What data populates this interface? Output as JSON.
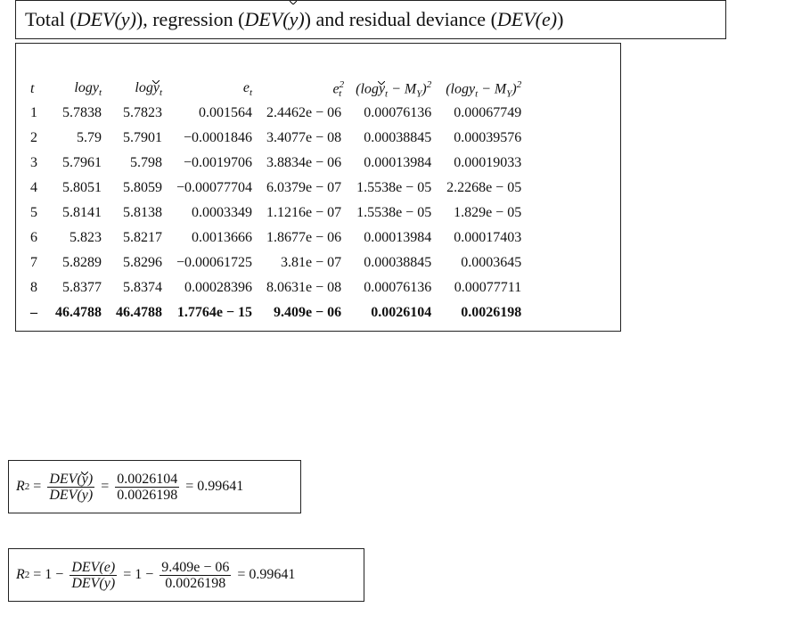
{
  "title": {
    "prefix": "Total (",
    "dev_y": "DEV(y)",
    "mid1": "), regression (",
    "dev_yhat_a": "DEV(",
    "dev_yhat_b": "y",
    "dev_yhat_c": ")",
    "mid2": ") and residual deviance (",
    "dev_e": "DEV(e)",
    "suffix": ")"
  },
  "table": {
    "headers": {
      "t": "t",
      "logy": "logy",
      "logy_sub": "t",
      "logyhat_a": "log",
      "logyhat_b": "y",
      "logyhat_sub": "t",
      "e": "e",
      "e_sub": "t",
      "e2": "e",
      "e2_sup": "2",
      "e2_sub": "t",
      "reg_a": "(log",
      "reg_b": "y",
      "reg_c": "t",
      "reg_d": " − M",
      "reg_e": "Y",
      "reg_f": ")",
      "reg_sup": "2",
      "tot_a": "(logy",
      "tot_b": "t",
      "tot_c": " − M",
      "tot_d": "Y",
      "tot_e": ")",
      "tot_sup": "2"
    },
    "rows": [
      {
        "t": "1",
        "logy": "5.7838",
        "logyhat": "5.7823",
        "e": "0.001564",
        "e2": "2.4462e − 06",
        "reg": "0.00076136",
        "tot": "0.00067749"
      },
      {
        "t": "2",
        "logy": "5.79",
        "logyhat": "5.7901",
        "e": "−0.0001846",
        "e2": "3.4077e − 08",
        "reg": "0.00038845",
        "tot": "0.00039576"
      },
      {
        "t": "3",
        "logy": "5.7961",
        "logyhat": "5.798",
        "e": "−0.0019706",
        "e2": "3.8834e − 06",
        "reg": "0.00013984",
        "tot": "0.00019033"
      },
      {
        "t": "4",
        "logy": "5.8051",
        "logyhat": "5.8059",
        "e": "−0.00077704",
        "e2": "6.0379e − 07",
        "reg": "1.5538e − 05",
        "tot": "2.2268e − 05"
      },
      {
        "t": "5",
        "logy": "5.8141",
        "logyhat": "5.8138",
        "e": "0.0003349",
        "e2": "1.1216e − 07",
        "reg": "1.5538e − 05",
        "tot": "1.829e − 05"
      },
      {
        "t": "6",
        "logy": "5.823",
        "logyhat": "5.8217",
        "e": "0.0013666",
        "e2": "1.8677e − 06",
        "reg": "0.00013984",
        "tot": "0.00017403"
      },
      {
        "t": "7",
        "logy": "5.8289",
        "logyhat": "5.8296",
        "e": "−0.00061725",
        "e2": "3.81e − 07",
        "reg": "0.00038845",
        "tot": "0.0003645"
      },
      {
        "t": "8",
        "logy": "5.8377",
        "logyhat": "5.8374",
        "e": "0.00028396",
        "e2": "8.0631e − 08",
        "reg": "0.00076136",
        "tot": "0.00077711"
      }
    ],
    "total": {
      "t": "–",
      "logy": "46.4788",
      "logyhat": "46.4788",
      "e": "1.7764e − 15",
      "e2": "9.409e − 06",
      "reg": "0.0026104",
      "tot": "0.0026198"
    }
  },
  "formula1": {
    "lhs": "R",
    "lhs_sup": "2",
    "eq1": "=",
    "num1_a": "DEV(",
    "num1_b": "y",
    "num1_c": ")",
    "den1": "DEV(y)",
    "eq2": "=",
    "num2": "0.0026104",
    "den2": "0.0026198",
    "eq3": "=",
    "result": "0.99641"
  },
  "formula2": {
    "lhs": "R",
    "lhs_sup": "2",
    "eq1": "= 1 −",
    "num1": "DEV(e)",
    "den1": "DEV(y)",
    "eq2": "= 1 −",
    "num2": "9.409e − 06",
    "den2": "0.0026198",
    "eq3": "=",
    "result": "0.99641"
  }
}
